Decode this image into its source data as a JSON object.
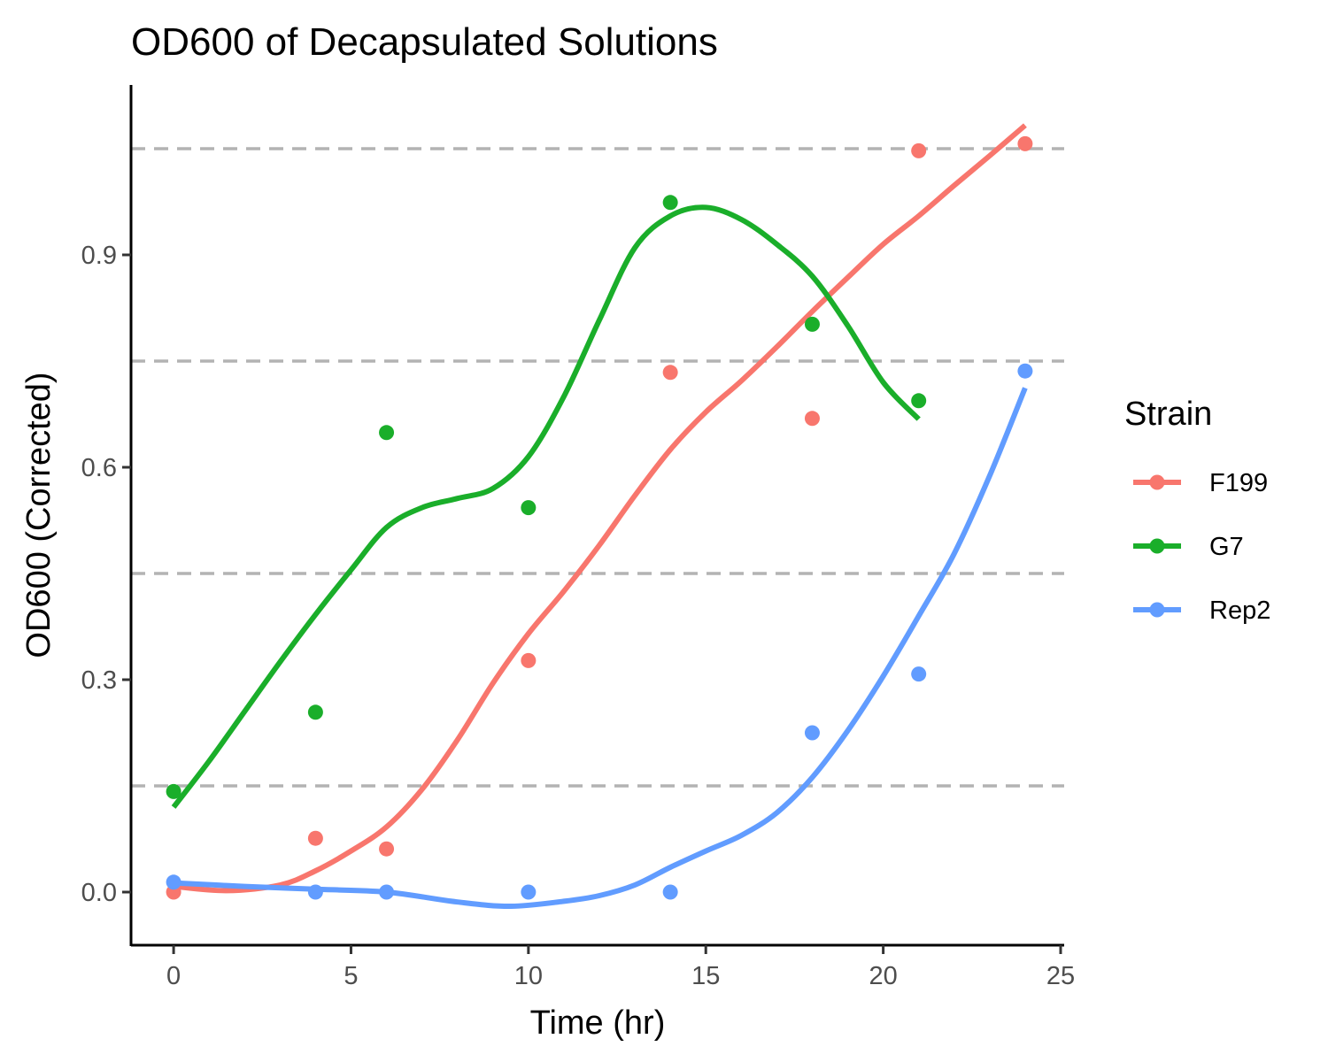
{
  "chart_data": {
    "type": "scatter",
    "title": "OD600 of Decapsulated Solutions",
    "xlabel": "Time (hr)",
    "ylabel": "OD600 (Corrected)",
    "xlim": [
      -1.2,
      25.1
    ],
    "ylim": [
      -0.075,
      1.14
    ],
    "x_ticks": [
      0,
      5,
      10,
      15,
      20,
      25
    ],
    "y_ticks": [
      0.0,
      0.3,
      0.6,
      0.9
    ],
    "y_tick_labels": [
      "0.0",
      "0.3",
      "0.6",
      "0.9"
    ],
    "reference_lines": [
      0.15,
      0.45,
      0.75,
      1.05
    ],
    "grid": false,
    "legend": {
      "title": "Strain",
      "position": "right"
    },
    "series": [
      {
        "name": "F199",
        "color": "#F8766D",
        "points": [
          [
            0,
            0.0
          ],
          [
            4,
            0.076
          ],
          [
            6,
            0.061
          ],
          [
            10,
            0.327
          ],
          [
            14,
            0.734
          ],
          [
            18,
            0.669
          ],
          [
            21,
            1.047
          ],
          [
            24,
            1.057
          ]
        ],
        "smooth": [
          [
            0,
            0.008
          ],
          [
            1.5,
            0.002
          ],
          [
            3,
            0.01
          ],
          [
            4,
            0.03
          ],
          [
            5,
            0.058
          ],
          [
            6,
            0.092
          ],
          [
            7,
            0.145
          ],
          [
            8,
            0.215
          ],
          [
            9,
            0.295
          ],
          [
            10,
            0.365
          ],
          [
            11,
            0.425
          ],
          [
            12,
            0.49
          ],
          [
            13,
            0.56
          ],
          [
            14,
            0.625
          ],
          [
            15,
            0.678
          ],
          [
            16,
            0.722
          ],
          [
            17,
            0.77
          ],
          [
            18,
            0.82
          ],
          [
            19,
            0.868
          ],
          [
            20,
            0.915
          ],
          [
            21,
            0.955
          ],
          [
            22,
            0.998
          ],
          [
            23,
            1.04
          ],
          [
            24,
            1.083
          ]
        ]
      },
      {
        "name": "G7",
        "color": "#1AAE2A",
        "points": [
          [
            0,
            0.142
          ],
          [
            4,
            0.254
          ],
          [
            6,
            0.649
          ],
          [
            10,
            0.543
          ],
          [
            14,
            0.974
          ],
          [
            18,
            0.802
          ],
          [
            21,
            0.694
          ]
        ],
        "smooth": [
          [
            0,
            0.12
          ],
          [
            1,
            0.185
          ],
          [
            2,
            0.255
          ],
          [
            3,
            0.325
          ],
          [
            4,
            0.392
          ],
          [
            5,
            0.455
          ],
          [
            6,
            0.515
          ],
          [
            7,
            0.543
          ],
          [
            8,
            0.556
          ],
          [
            9,
            0.57
          ],
          [
            10,
            0.615
          ],
          [
            11,
            0.7
          ],
          [
            12,
            0.808
          ],
          [
            13,
            0.91
          ],
          [
            14,
            0.955
          ],
          [
            15,
            0.967
          ],
          [
            16,
            0.95
          ],
          [
            17,
            0.915
          ],
          [
            18,
            0.87
          ],
          [
            19,
            0.8
          ],
          [
            20,
            0.72
          ],
          [
            21,
            0.668
          ]
        ]
      },
      {
        "name": "Rep2",
        "color": "#619CFF",
        "points": [
          [
            0,
            0.014
          ],
          [
            4,
            0.0
          ],
          [
            6,
            0.0
          ],
          [
            10,
            0.0
          ],
          [
            14,
            0.0
          ],
          [
            18,
            0.225
          ],
          [
            21,
            0.308
          ],
          [
            24,
            0.736
          ]
        ],
        "smooth": [
          [
            0,
            0.013
          ],
          [
            2,
            0.008
          ],
          [
            4,
            0.004
          ],
          [
            6,
            0.0
          ],
          [
            8,
            -0.014
          ],
          [
            9.5,
            -0.02
          ],
          [
            11,
            -0.013
          ],
          [
            12,
            -0.005
          ],
          [
            13,
            0.01
          ],
          [
            14,
            0.035
          ],
          [
            15,
            0.058
          ],
          [
            16,
            0.08
          ],
          [
            17,
            0.112
          ],
          [
            18,
            0.162
          ],
          [
            19,
            0.228
          ],
          [
            20,
            0.305
          ],
          [
            21,
            0.39
          ],
          [
            22,
            0.478
          ],
          [
            23,
            0.588
          ],
          [
            24,
            0.712
          ]
        ]
      }
    ]
  }
}
